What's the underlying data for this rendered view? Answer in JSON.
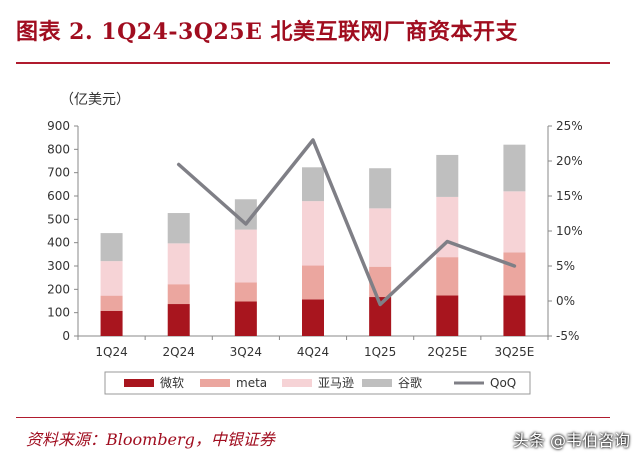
{
  "title": "图表 2. 1Q24-3Q25E 北美互联网厂商资本开支",
  "unit": "（亿美元）",
  "source": "资料来源：Bloomberg，中银证券",
  "watermark": "头条 @韦伯咨询",
  "colors": {
    "title": "#a00d1f",
    "microsoft": "#a8151e",
    "meta": "#eba69f",
    "amazon": "#f6d3d6",
    "google": "#bfbfbf",
    "qoq": "#7f7f86"
  },
  "chart_data": {
    "type": "bar",
    "stacked": true,
    "categories": [
      "1Q24",
      "2Q24",
      "3Q24",
      "4Q24",
      "1Q25",
      "2Q25E",
      "3Q25E"
    ],
    "series": [
      {
        "name": "微软",
        "values": [
          108,
          137,
          148,
          157,
          167,
          174,
          174
        ]
      },
      {
        "name": "meta",
        "values": [
          65,
          85,
          82,
          145,
          130,
          164,
          184
        ]
      },
      {
        "name": "亚马逊",
        "values": [
          148,
          175,
          226,
          276,
          250,
          258,
          262
        ]
      },
      {
        "name": "谷歌",
        "values": [
          120,
          130,
          130,
          145,
          172,
          180,
          200
        ]
      }
    ],
    "line_series": {
      "name": "QoQ",
      "axis": "right",
      "values": [
        null,
        19.5,
        11.0,
        23.0,
        -0.5,
        8.5,
        5.0
      ]
    },
    "ylim": [
      0,
      900
    ],
    "yticks": [
      "0",
      "100",
      "200",
      "300",
      "400",
      "500",
      "600",
      "700",
      "800",
      "900"
    ],
    "y2lim": [
      -5,
      25
    ],
    "y2ticks": [
      "-5%",
      "0%",
      "5%",
      "10%",
      "15%",
      "20%",
      "25%"
    ],
    "legend_position": "bottom"
  }
}
